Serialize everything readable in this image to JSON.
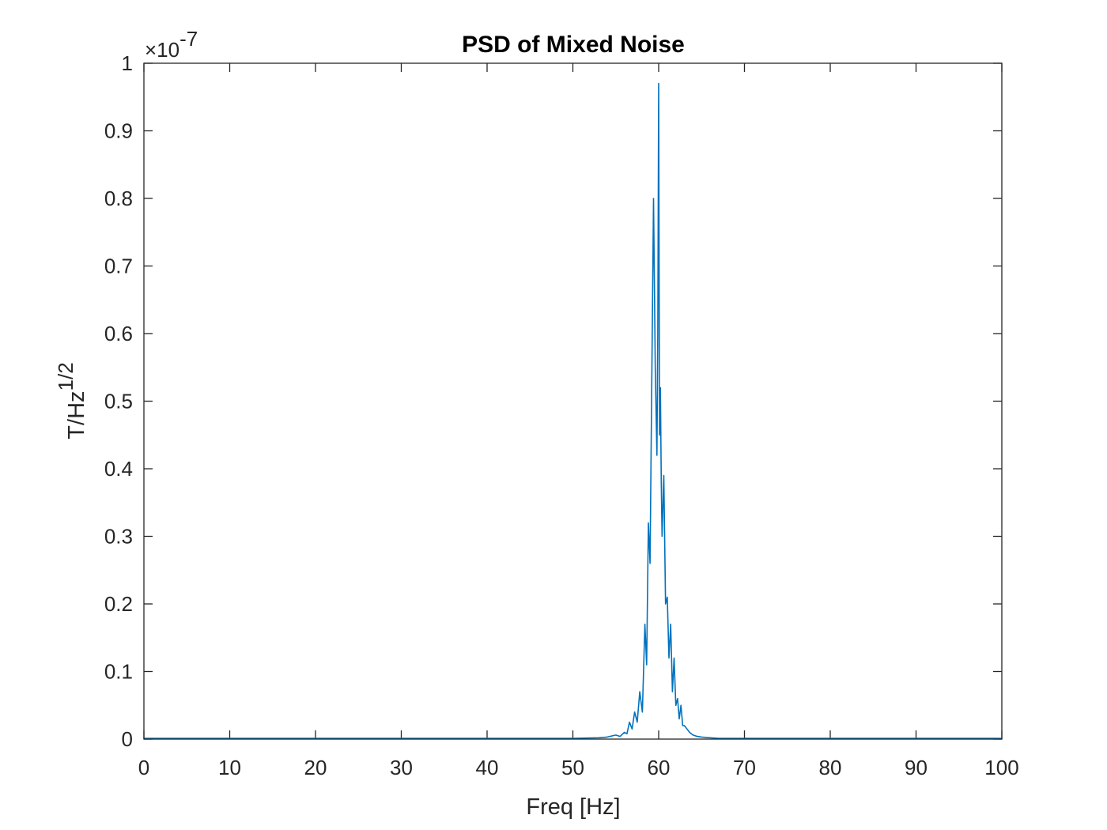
{
  "colors": {
    "line": "#0072BD",
    "axes": "#262626",
    "background": "#ffffff"
  },
  "chart_data": {
    "type": "line",
    "title": "PSD of Mixed Noise",
    "xlabel": "Freq [Hz]",
    "ylabel_base": "T/Hz",
    "ylabel_sup": "1/2",
    "y_multiplier_base": "×10",
    "y_multiplier_exp": "-7",
    "xlim": [
      0,
      100
    ],
    "ylim": [
      0,
      1
    ],
    "xticks": [
      "0",
      "10",
      "20",
      "30",
      "40",
      "50",
      "60",
      "70",
      "80",
      "90",
      "100"
    ],
    "yticks": [
      "0",
      "0.1",
      "0.2",
      "0.3",
      "0.4",
      "0.5",
      "0.6",
      "0.7",
      "0.8",
      "0.9",
      "1"
    ],
    "grid": false,
    "series": [
      {
        "color": "#0072BD",
        "x": [
          0,
          10,
          20,
          30,
          40,
          50,
          53,
          54,
          55,
          55.5,
          56,
          56.3,
          56.6,
          56.9,
          57.2,
          57.5,
          57.8,
          58.1,
          58.4,
          58.6,
          58.8,
          59.0,
          59.2,
          59.4,
          59.6,
          59.8,
          59.9,
          60.0,
          60.1,
          60.2,
          60.3,
          60.4,
          60.6,
          60.8,
          61.0,
          61.2,
          61.4,
          61.6,
          61.8,
          62.0,
          62.2,
          62.4,
          62.6,
          62.8,
          63.0,
          63.3,
          63.6,
          64.0,
          64.5,
          65.0,
          66.0,
          67.0,
          70,
          80,
          90,
          100
        ],
        "y": [
          0.001,
          0.001,
          0.001,
          0.001,
          0.001,
          0.001,
          0.002,
          0.003,
          0.006,
          0.004,
          0.01,
          0.008,
          0.025,
          0.015,
          0.04,
          0.025,
          0.07,
          0.04,
          0.17,
          0.11,
          0.32,
          0.26,
          0.53,
          0.8,
          0.55,
          0.42,
          0.6,
          0.97,
          0.45,
          0.52,
          0.38,
          0.3,
          0.39,
          0.2,
          0.21,
          0.12,
          0.17,
          0.07,
          0.12,
          0.05,
          0.06,
          0.03,
          0.05,
          0.02,
          0.02,
          0.015,
          0.01,
          0.006,
          0.004,
          0.003,
          0.002,
          0.001,
          0.001,
          0.001,
          0.001,
          0.001
        ]
      }
    ]
  }
}
